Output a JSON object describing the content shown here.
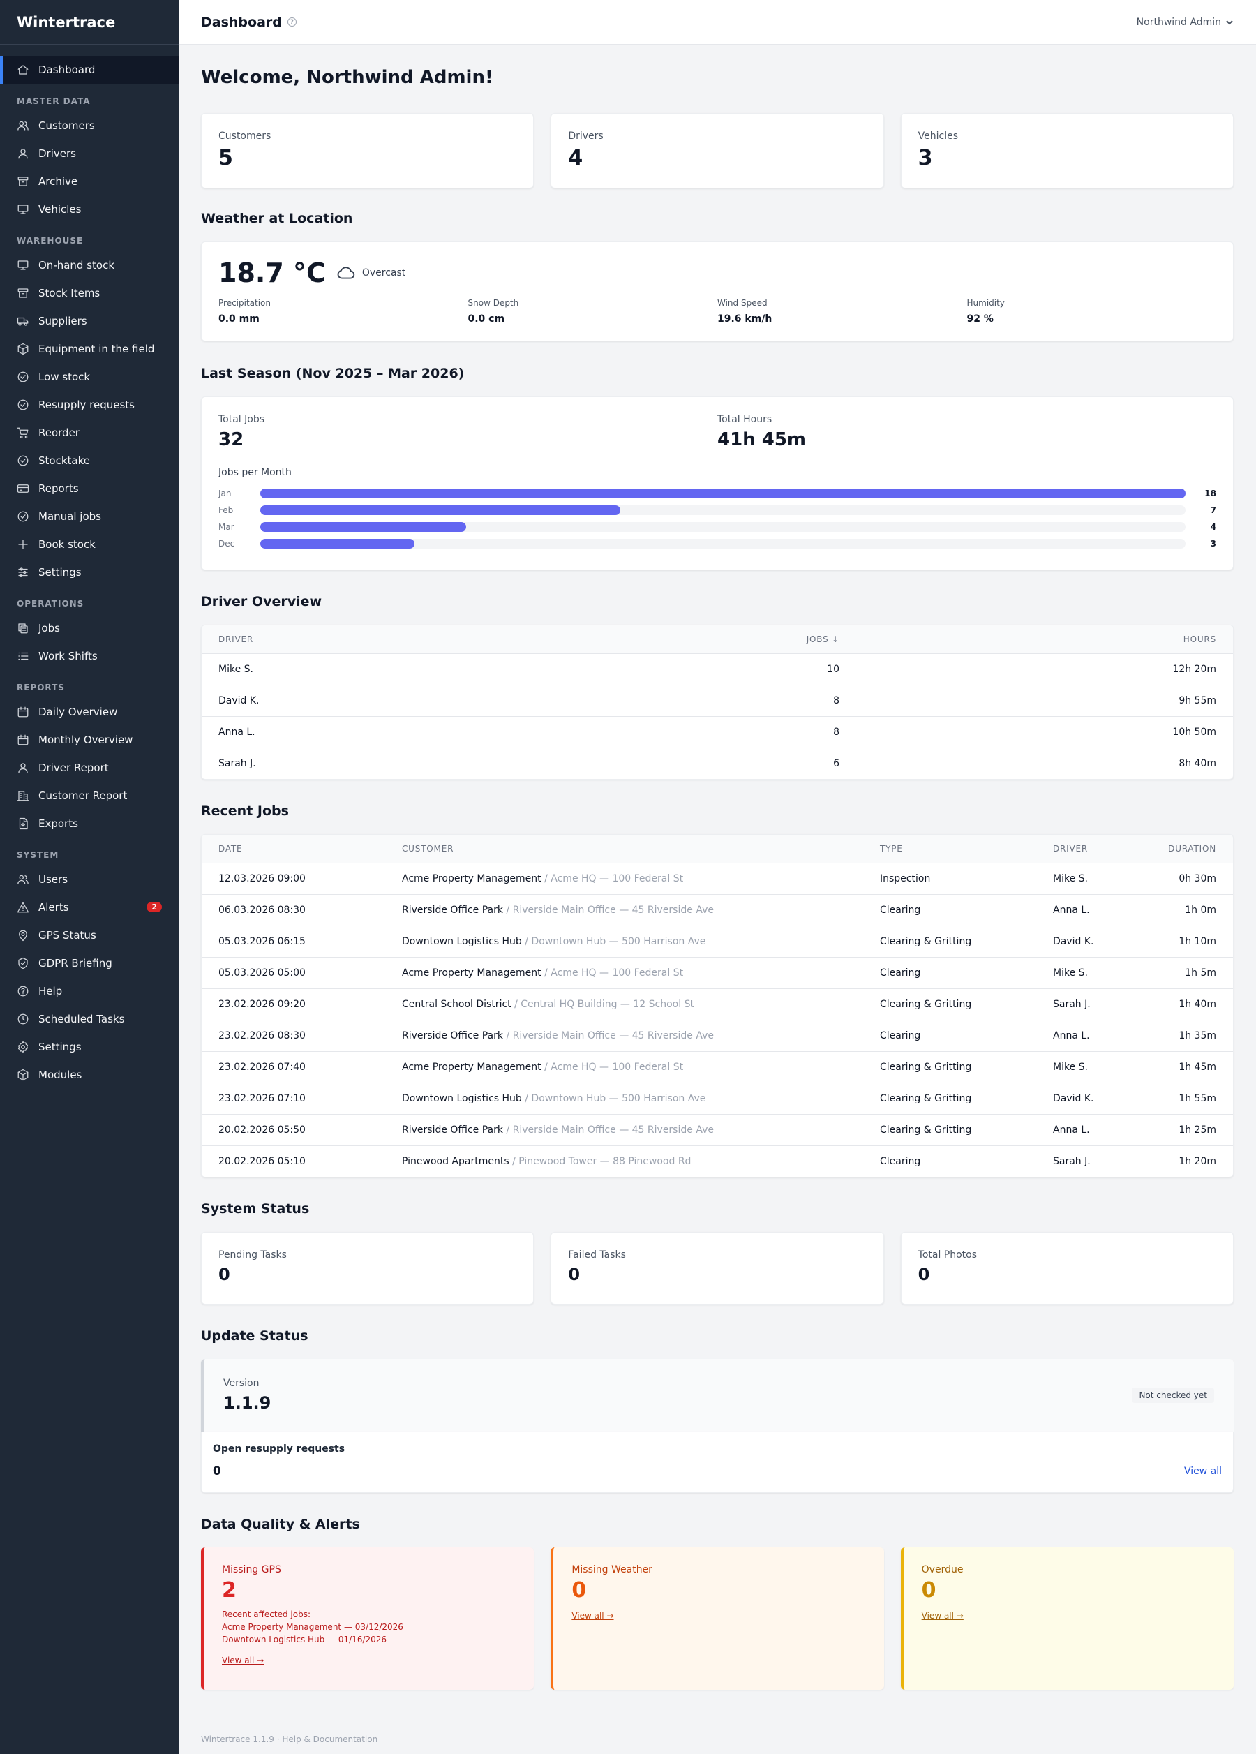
{
  "app": {
    "name": "Wintertrace"
  },
  "sidebar": {
    "main": [
      {
        "label": "Dashboard",
        "icon": "home-icon"
      }
    ],
    "sections": [
      {
        "title": "MASTER DATA",
        "items": [
          {
            "label": "Customers",
            "icon": "users-icon"
          },
          {
            "label": "Drivers",
            "icon": "user-icon"
          },
          {
            "label": "Archive",
            "icon": "archive-icon"
          },
          {
            "label": "Vehicles",
            "icon": "monitor-icon"
          }
        ]
      },
      {
        "title": "WAREHOUSE",
        "items": [
          {
            "label": "On-hand stock",
            "icon": "monitor-icon"
          },
          {
            "label": "Stock Items",
            "icon": "archive-icon"
          },
          {
            "label": "Suppliers",
            "icon": "truck-icon"
          },
          {
            "label": "Equipment in the field",
            "icon": "box-icon"
          },
          {
            "label": "Low stock",
            "icon": "check-circle-icon"
          },
          {
            "label": "Resupply requests",
            "icon": "check-circle-icon"
          },
          {
            "label": "Reorder",
            "icon": "cart-icon"
          },
          {
            "label": "Stocktake",
            "icon": "check-circle-icon"
          },
          {
            "label": "Reports",
            "icon": "card-icon"
          },
          {
            "label": "Manual jobs",
            "icon": "check-circle-icon"
          },
          {
            "label": "Book stock",
            "icon": "plus-icon"
          },
          {
            "label": "Settings",
            "icon": "sliders-icon"
          }
        ]
      },
      {
        "title": "OPERATIONS",
        "items": [
          {
            "label": "Jobs",
            "icon": "copy-icon"
          },
          {
            "label": "Work Shifts",
            "icon": "list-icon"
          }
        ]
      },
      {
        "title": "REPORTS",
        "items": [
          {
            "label": "Daily Overview",
            "icon": "calendar-icon"
          },
          {
            "label": "Monthly Overview",
            "icon": "calendar-icon"
          },
          {
            "label": "Driver Report",
            "icon": "user-icon"
          },
          {
            "label": "Customer Report",
            "icon": "building-icon"
          },
          {
            "label": "Exports",
            "icon": "file-icon"
          }
        ]
      },
      {
        "title": "SYSTEM",
        "items": [
          {
            "label": "Users",
            "icon": "users-icon"
          },
          {
            "label": "Alerts",
            "icon": "alert-icon",
            "badge": "2"
          },
          {
            "label": "GPS Status",
            "icon": "pin-icon"
          },
          {
            "label": "GDPR Briefing",
            "icon": "shield-icon"
          },
          {
            "label": "Help",
            "icon": "help-icon"
          },
          {
            "label": "Scheduled Tasks",
            "icon": "clock-icon"
          },
          {
            "label": "Settings",
            "icon": "gear-icon"
          },
          {
            "label": "Modules",
            "icon": "box-icon"
          }
        ]
      }
    ]
  },
  "header": {
    "title": "Dashboard",
    "help_glyph": "?",
    "user": "Northwind Admin"
  },
  "welcome": "Welcome, Northwind Admin!",
  "stats": [
    {
      "label": "Customers",
      "value": "5"
    },
    {
      "label": "Drivers",
      "value": "4"
    },
    {
      "label": "Vehicles",
      "value": "3"
    }
  ],
  "weather": {
    "title": "Weather at Location",
    "temp": "18.7 °C",
    "condition": "Overcast",
    "metrics": [
      {
        "label": "Precipitation",
        "value": "0.0 mm"
      },
      {
        "label": "Snow Depth",
        "value": "0.0 cm"
      },
      {
        "label": "Wind Speed",
        "value": "19.6 km/h"
      },
      {
        "label": "Humidity",
        "value": "92 %"
      }
    ]
  },
  "season": {
    "title": "Last Season (Nov 2025 – Mar 2026)",
    "total_jobs_label": "Total Jobs",
    "total_jobs": "32",
    "total_hours_label": "Total Hours",
    "total_hours": "41h 45m",
    "chart_title": "Jobs per Month"
  },
  "chart_data": {
    "type": "bar",
    "orientation": "horizontal",
    "categories": [
      "Jan",
      "Feb",
      "Mar",
      "Dec"
    ],
    "values": [
      18,
      7,
      4,
      3
    ],
    "title": "Jobs per Month",
    "xlim": [
      0,
      18
    ],
    "color": "#6366f1"
  },
  "drivers": {
    "title": "Driver Overview",
    "columns": [
      "DRIVER",
      "JOBS ↓",
      "HOURS"
    ],
    "rows": [
      [
        "Mike S.",
        "10",
        "12h 20m"
      ],
      [
        "David K.",
        "8",
        "9h 55m"
      ],
      [
        "Anna L.",
        "8",
        "10h 50m"
      ],
      [
        "Sarah J.",
        "6",
        "8h 40m"
      ]
    ]
  },
  "recent_jobs": {
    "title": "Recent Jobs",
    "columns": [
      "DATE",
      "CUSTOMER",
      "TYPE",
      "DRIVER",
      "DURATION"
    ],
    "rows": [
      {
        "date": "12.03.2026 09:00",
        "customer": "Acme Property Management",
        "location": "/ Acme HQ — 100 Federal St",
        "type": "Inspection",
        "driver": "Mike S.",
        "duration": "0h 30m"
      },
      {
        "date": "06.03.2026 08:30",
        "customer": "Riverside Office Park",
        "location": "/ Riverside Main Office — 45 Riverside Ave",
        "type": "Clearing",
        "driver": "Anna L.",
        "duration": "1h 0m"
      },
      {
        "date": "05.03.2026 06:15",
        "customer": "Downtown Logistics Hub",
        "location": "/ Downtown Hub — 500 Harrison Ave",
        "type": "Clearing & Gritting",
        "driver": "David K.",
        "duration": "1h 10m"
      },
      {
        "date": "05.03.2026 05:00",
        "customer": "Acme Property Management",
        "location": "/ Acme HQ — 100 Federal St",
        "type": "Clearing",
        "driver": "Mike S.",
        "duration": "1h 5m"
      },
      {
        "date": "23.02.2026 09:20",
        "customer": "Central School District",
        "location": "/ Central HQ Building — 12 School St",
        "type": "Clearing & Gritting",
        "driver": "Sarah J.",
        "duration": "1h 40m"
      },
      {
        "date": "23.02.2026 08:30",
        "customer": "Riverside Office Park",
        "location": "/ Riverside Main Office — 45 Riverside Ave",
        "type": "Clearing",
        "driver": "Anna L.",
        "duration": "1h 35m"
      },
      {
        "date": "23.02.2026 07:40",
        "customer": "Acme Property Management",
        "location": "/ Acme HQ — 100 Federal St",
        "type": "Clearing & Gritting",
        "driver": "Mike S.",
        "duration": "1h 45m"
      },
      {
        "date": "23.02.2026 07:10",
        "customer": "Downtown Logistics Hub",
        "location": "/ Downtown Hub — 500 Harrison Ave",
        "type": "Clearing & Gritting",
        "driver": "David K.",
        "duration": "1h 55m"
      },
      {
        "date": "20.02.2026 05:50",
        "customer": "Riverside Office Park",
        "location": "/ Riverside Main Office — 45 Riverside Ave",
        "type": "Clearing & Gritting",
        "driver": "Anna L.",
        "duration": "1h 25m"
      },
      {
        "date": "20.02.2026 05:10",
        "customer": "Pinewood Apartments",
        "location": "/ Pinewood Tower — 88 Pinewood Rd",
        "type": "Clearing",
        "driver": "Sarah J.",
        "duration": "1h 20m"
      }
    ]
  },
  "system_status": {
    "title": "System Status",
    "items": [
      {
        "label": "Pending Tasks",
        "value": "0"
      },
      {
        "label": "Failed Tasks",
        "value": "0"
      },
      {
        "label": "Total Photos",
        "value": "0"
      }
    ]
  },
  "update_status": {
    "title": "Update Status",
    "version_label": "Version",
    "version": "1.1.9",
    "status": "Not checked yet",
    "resupply_label": "Open resupply requests",
    "resupply_count": "0",
    "view_all": "View all"
  },
  "data_quality": {
    "title": "Data Quality & Alerts",
    "missing_gps": {
      "label": "Missing GPS",
      "value": "2",
      "recent_label": "Recent affected jobs:",
      "jobs": [
        "Acme Property Management — 03/12/2026",
        "Downtown Logistics Hub — 01/16/2026"
      ],
      "link": "View all →",
      "color": "#dc2626"
    },
    "missing_weather": {
      "label": "Missing Weather",
      "value": "0",
      "link": "View all →",
      "color": "#ea580c"
    },
    "overdue": {
      "label": "Overdue",
      "value": "0",
      "link": "View all →",
      "color": "#ca8a04"
    }
  },
  "footer": "Wintertrace 1.1.9 · Help & Documentation"
}
